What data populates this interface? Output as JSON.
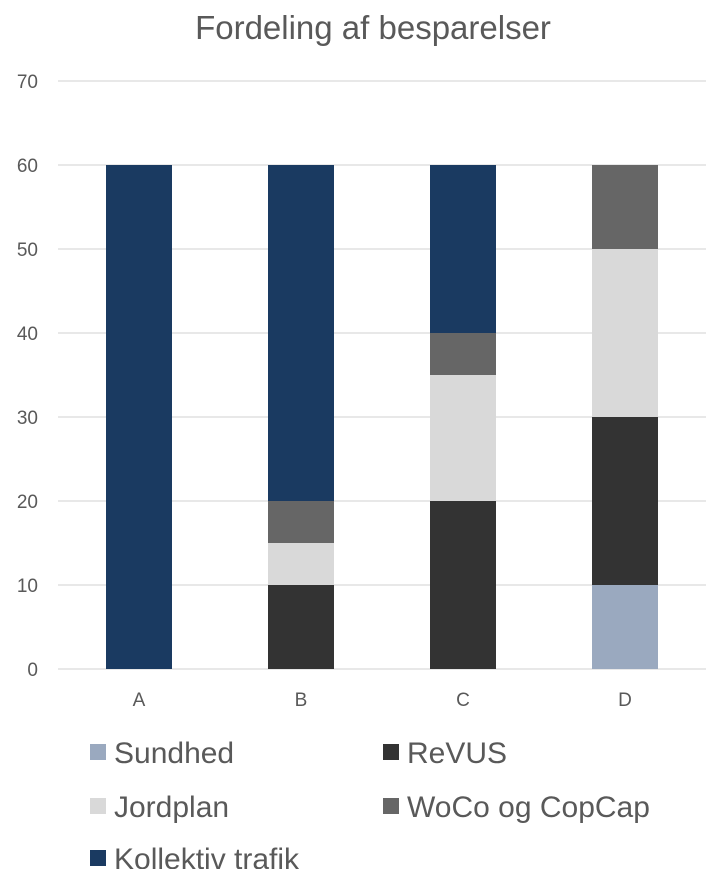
{
  "chart_data": {
    "type": "bar",
    "stacked": true,
    "title": "Fordeling af besparelser",
    "xlabel": "",
    "ylabel": "",
    "categories": [
      "A",
      "B",
      "C",
      "D"
    ],
    "ylim": [
      0,
      70
    ],
    "yticks": [
      0,
      10,
      20,
      30,
      40,
      50,
      60,
      70
    ],
    "grid": true,
    "legend_position": "bottom",
    "series": [
      {
        "name": "Sundhed",
        "color": "#9aa9bf",
        "values": [
          0,
          0,
          0,
          10
        ]
      },
      {
        "name": "ReVUS",
        "color": "#333333",
        "values": [
          0,
          10,
          20,
          20
        ]
      },
      {
        "name": "Jordplan",
        "color": "#d9d9d9",
        "values": [
          0,
          5,
          15,
          20
        ]
      },
      {
        "name": "WoCo og CopCap",
        "color": "#666666",
        "values": [
          0,
          5,
          5,
          10
        ]
      },
      {
        "name": "Kollektiv trafik",
        "color": "#1a3a61",
        "values": [
          60,
          40,
          20,
          0
        ]
      }
    ]
  }
}
